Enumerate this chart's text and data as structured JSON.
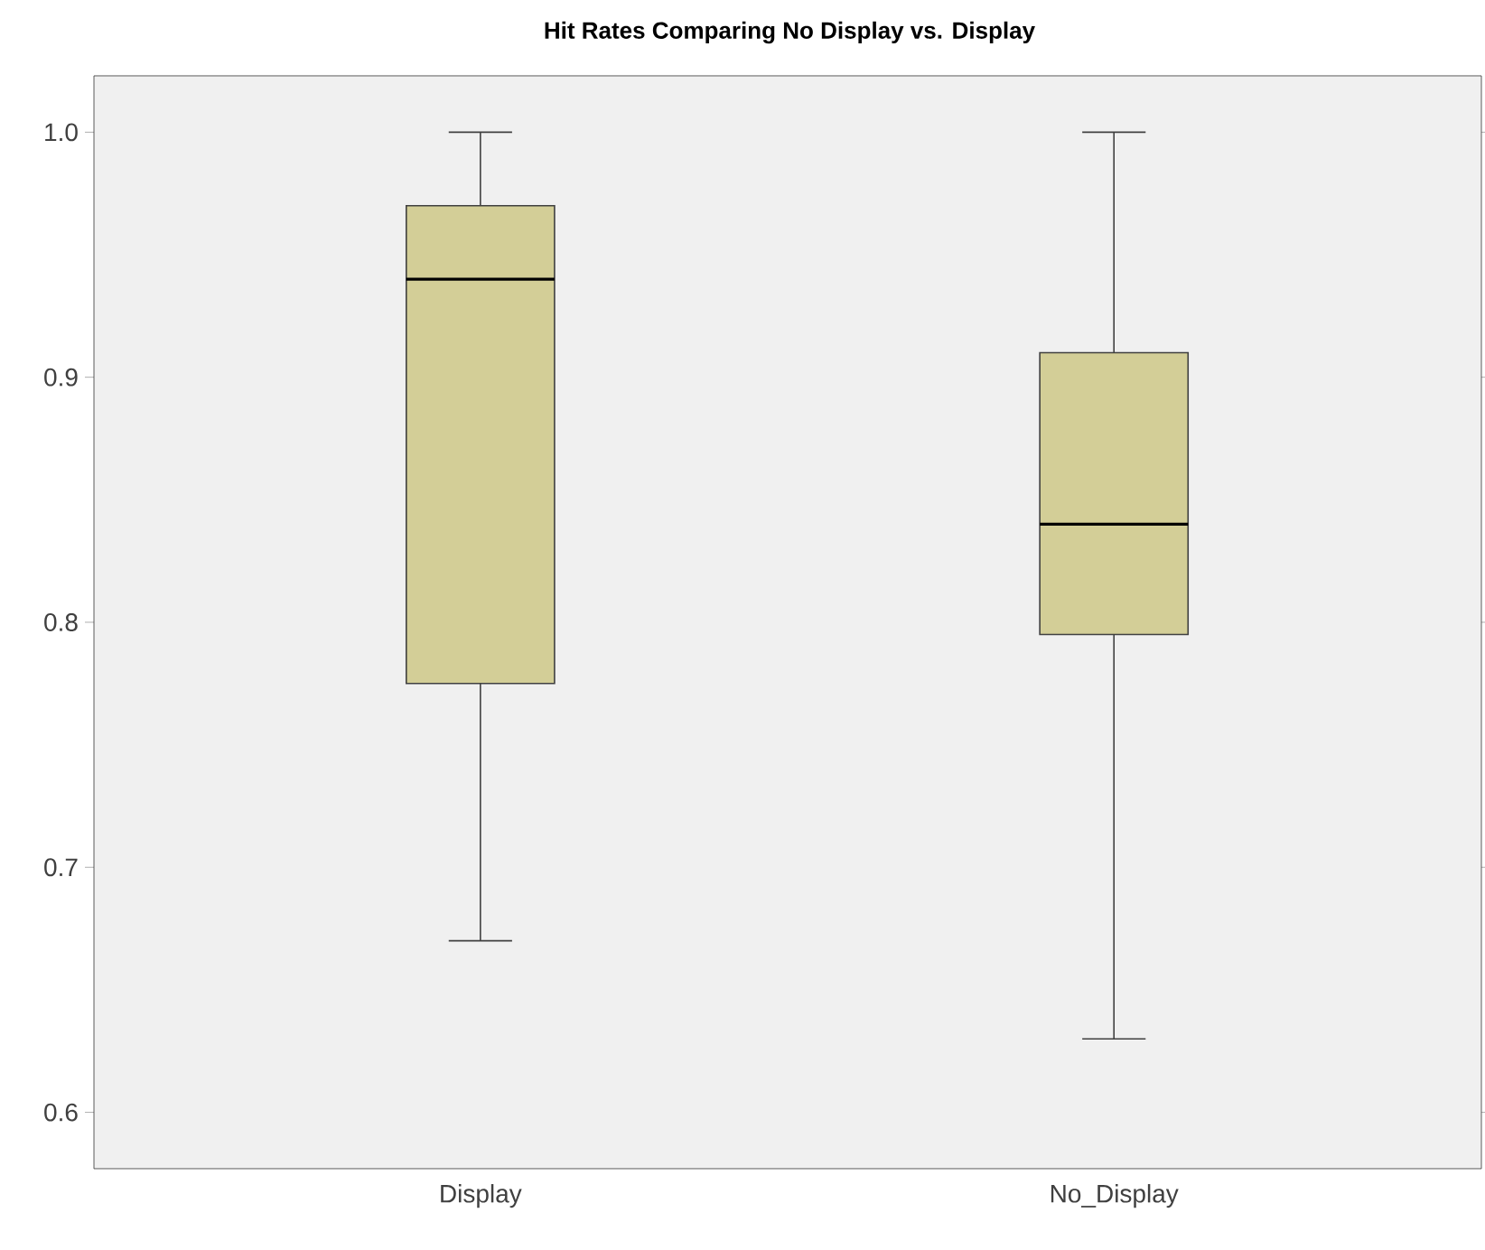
{
  "chart_data": {
    "type": "box",
    "title": "Hit Rates Comparing No Display vs. Display",
    "categories": [
      "Display",
      "No_Display"
    ],
    "color": "#d3ce97",
    "boxes": [
      {
        "low": 0.67,
        "q1": 0.775,
        "median": 0.94,
        "q3": 0.97,
        "high": 1.0
      },
      {
        "low": 0.63,
        "q1": 0.795,
        "median": 0.84,
        "q3": 0.91,
        "high": 1.0
      }
    ],
    "ylim": [
      0.577,
      1.023
    ],
    "yticks": [
      0.6,
      0.7,
      0.8,
      0.9,
      {
        "value": 1.0,
        "label": "1.0"
      }
    ],
    "grid": false
  }
}
